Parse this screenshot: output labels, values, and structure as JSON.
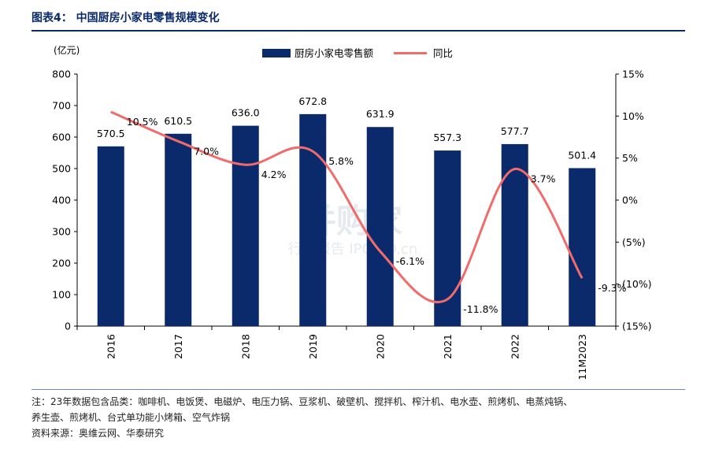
{
  "figure": {
    "title": "图表4：  中国厨房小家电零售规模变化",
    "y_unit": "(亿元)",
    "notes": [
      "注：23年数据包含品类：咖啡机、电饭煲、电磁炉、电压力锅、豆浆机、破壁机、搅拌机、榨汁机、电水壶、煎烤机、电蒸炖锅、",
      "养生壶、煎烤机、台式单功能小烤箱、空气炸锅"
    ],
    "source": "资料来源：奥维云网、华泰研究"
  },
  "watermark": {
    "text": "并购家",
    "sub": "行业报告 IPOIPO.cn"
  },
  "colors": {
    "bar": "#0b2a6b",
    "line": "#f26b6b",
    "title": "#0b2a6b"
  },
  "chart_data": {
    "type": "bar",
    "categories": [
      "2016",
      "2017",
      "2018",
      "2019",
      "2020",
      "2021",
      "2022",
      "11M2023"
    ],
    "series": [
      {
        "name": "厨房小家电零售额",
        "type": "bar",
        "axis": "left",
        "values": [
          570.5,
          610.5,
          636.0,
          672.8,
          631.9,
          557.3,
          577.7,
          501.4
        ],
        "labels": [
          "570.5",
          "610.5",
          "636.0",
          "672.8",
          "631.9",
          "557.3",
          "577.7",
          "501.4"
        ]
      },
      {
        "name": "同比",
        "type": "line",
        "axis": "right",
        "values": [
          10.5,
          7.0,
          4.2,
          5.8,
          -6.1,
          -11.8,
          3.7,
          -9.3
        ],
        "labels": [
          "10.5%",
          "7.0%",
          "4.2%",
          "5.8%",
          "-6.1%",
          "-11.8%",
          "3.7%",
          "-9.3%"
        ]
      }
    ],
    "y_left": {
      "range": [
        0,
        800
      ],
      "ticks": [
        "0",
        "100",
        "200",
        "300",
        "400",
        "500",
        "600",
        "700",
        "800"
      ]
    },
    "y_right": {
      "range": [
        -15,
        15
      ],
      "ticks": [
        "(15%)",
        "(10%)",
        "(5%)",
        "0%",
        "5%",
        "10%",
        "15%"
      ]
    },
    "legend_position": "top-center",
    "grid": false
  }
}
